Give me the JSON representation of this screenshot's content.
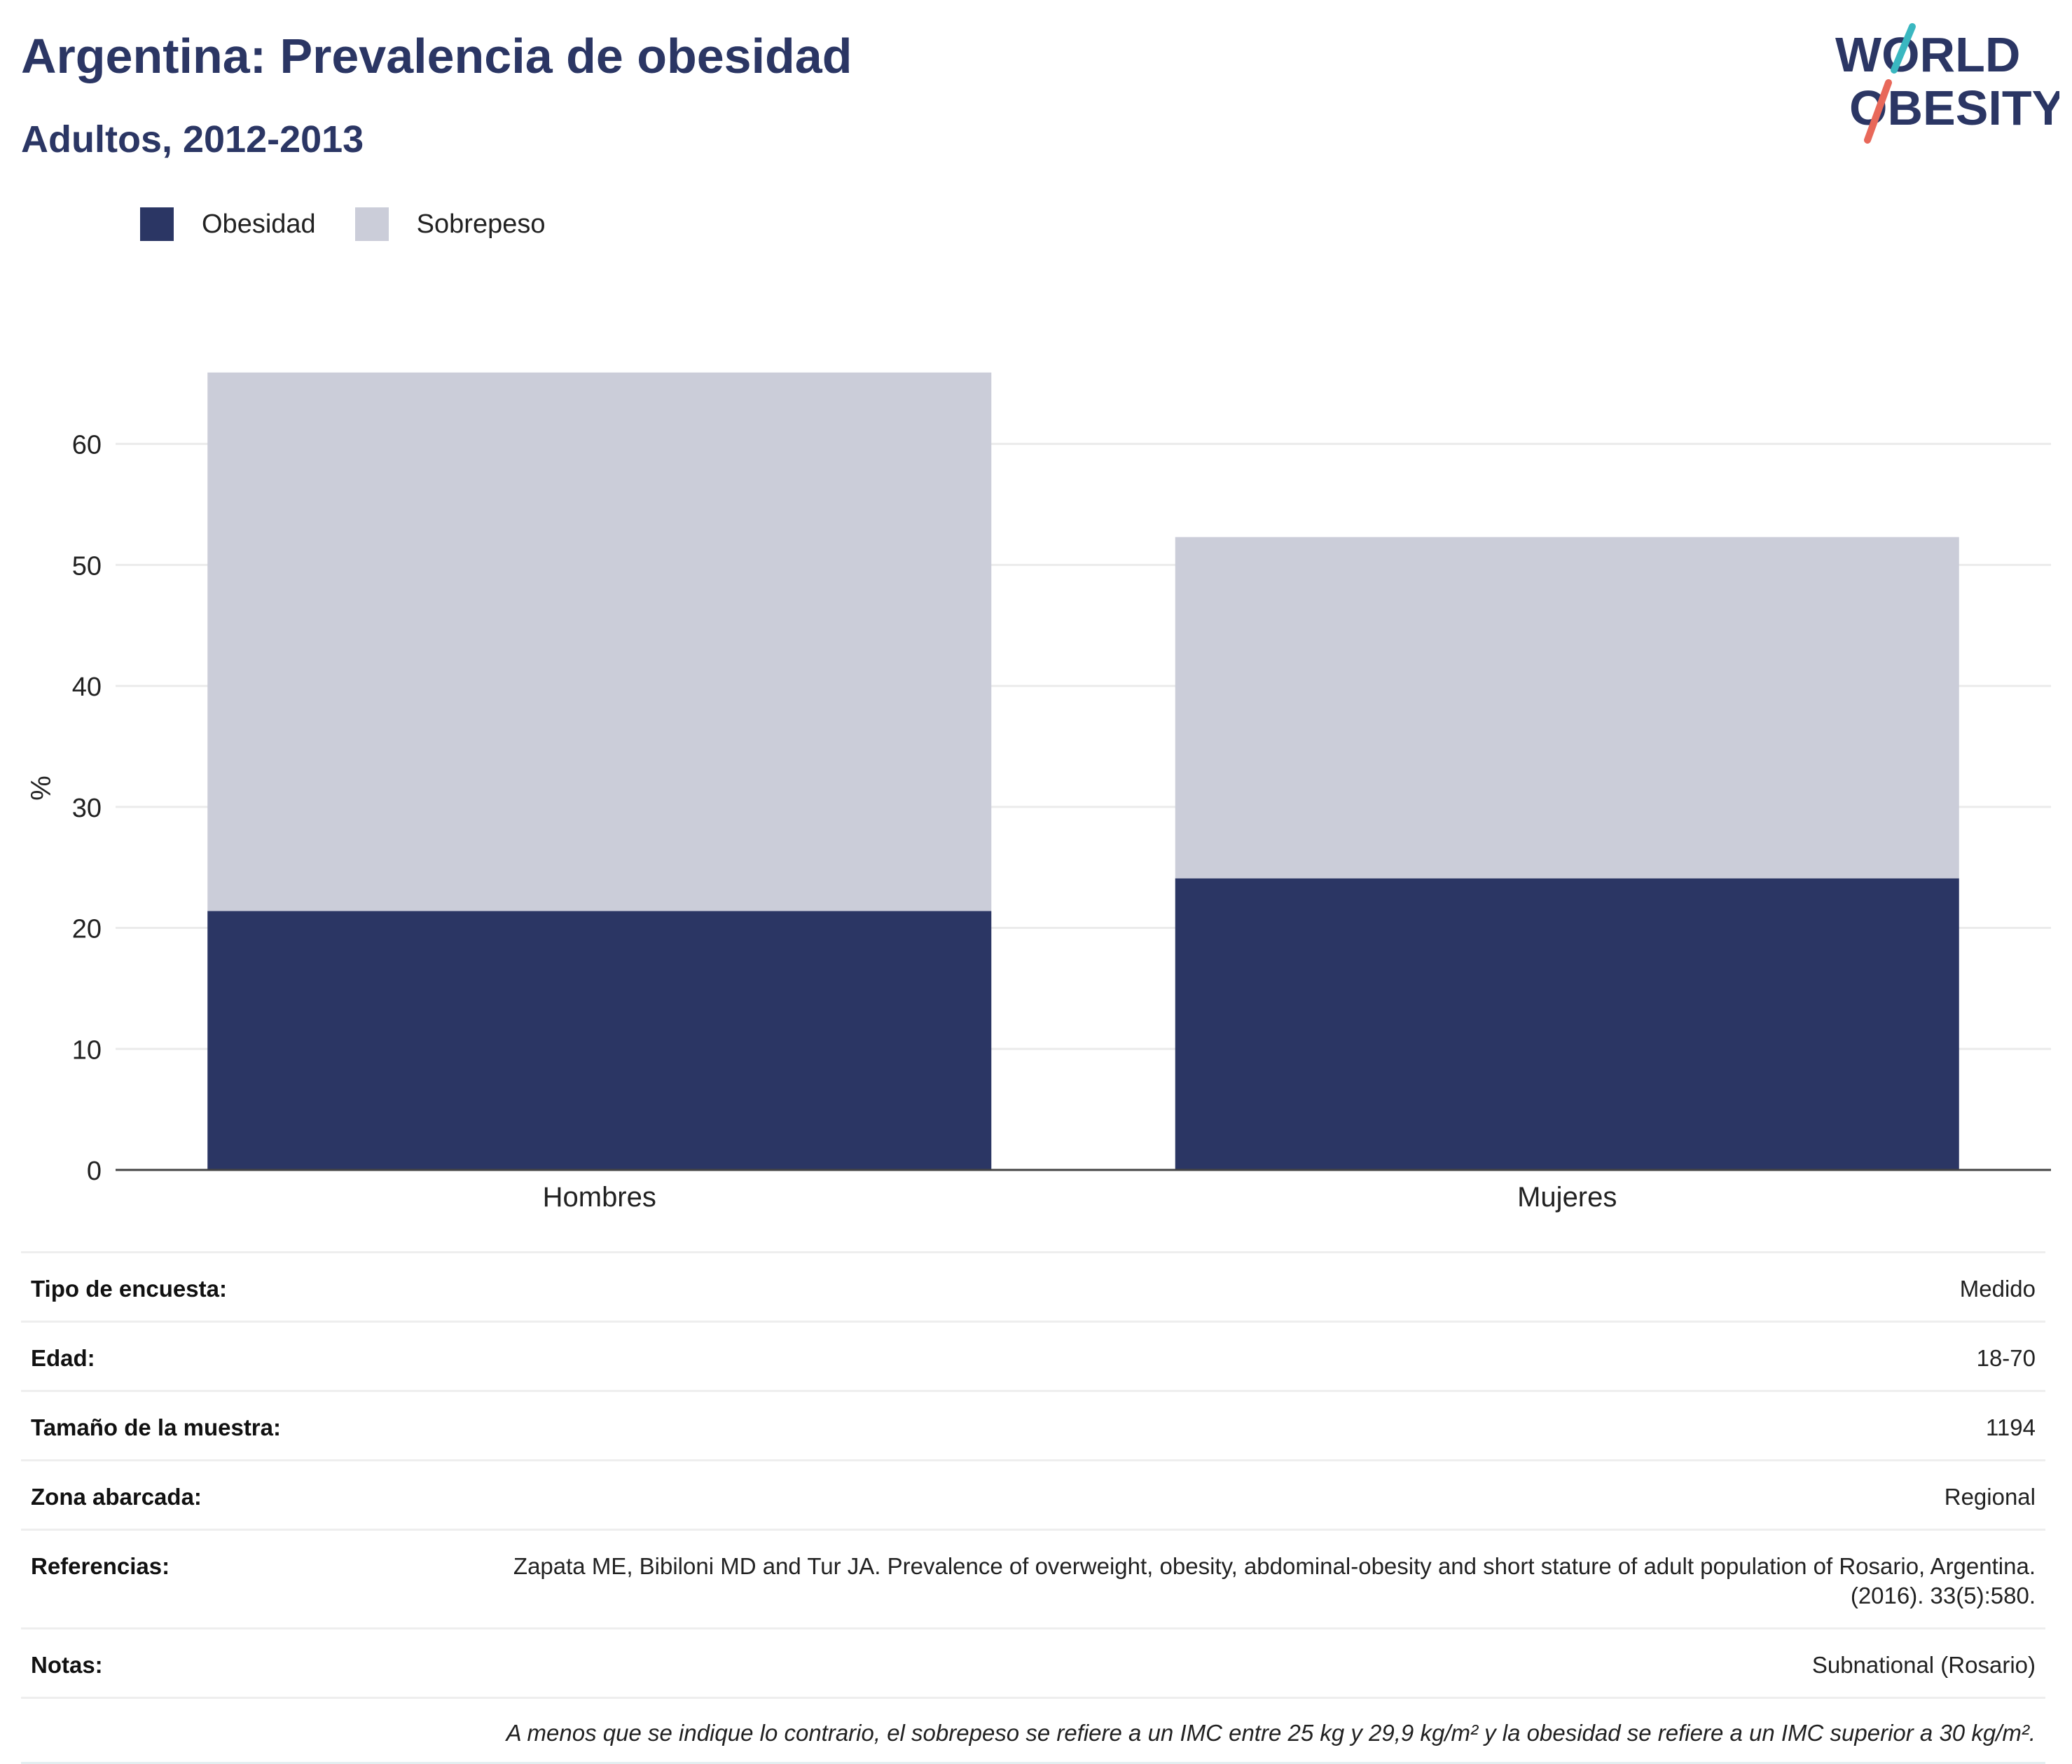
{
  "header": {
    "title": "Argentina: Prevalencia de obesidad",
    "subtitle": "Adultos, 2012-2013",
    "logo_line1": "WORLD",
    "logo_line2": "OBESITY"
  },
  "colors": {
    "obesity": "#2b3664",
    "overweight": "#cbcdd9",
    "logo_teal": "#3ab7c0",
    "logo_coral": "#e8685a"
  },
  "legend": [
    "Obesidad",
    "Sobrepeso"
  ],
  "chart_data": {
    "type": "bar",
    "stacked": true,
    "categories": [
      "Hombres",
      "Mujeres"
    ],
    "series": [
      {
        "name": "Obesidad",
        "values": [
          21.4,
          24.1
        ]
      },
      {
        "name": "Sobrepeso",
        "values": [
          44.5,
          28.2
        ]
      }
    ],
    "ylabel": "%",
    "ylim": [
      0,
      66
    ],
    "yticks": [
      0,
      10,
      20,
      30,
      40,
      50,
      60
    ],
    "grid": true,
    "legend_position": "top-left"
  },
  "meta": [
    {
      "label": "Tipo de encuesta:",
      "value": "Medido"
    },
    {
      "label": "Edad:",
      "value": "18-70"
    },
    {
      "label": "Tamaño de la muestra:",
      "value": "1194"
    },
    {
      "label": "Zona abarcada:",
      "value": "Regional"
    },
    {
      "label": "Referencias:",
      "value": "Zapata ME, Bibiloni MD and Tur JA. Prevalence of overweight, obesity, abdominal-obesity and short stature of adult population of Rosario, Argentina. (2016). 33(5):580."
    },
    {
      "label": "Notas:",
      "value": "Subnational (Rosario)"
    }
  ],
  "footnote": "A menos que se indique lo contrario, el sobrepeso se refiere a un IMC entre 25 kg y 29,9 kg/m² y la obesidad se refiere a un IMC superior a 30 kg/m²."
}
